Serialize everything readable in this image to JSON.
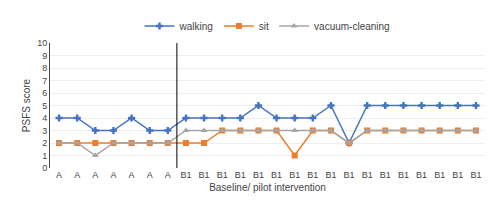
{
  "chart_data": {
    "type": "line",
    "categories": [
      "A",
      "A",
      "A",
      "A",
      "A",
      "A",
      "A",
      "B1",
      "B1",
      "B1",
      "B1",
      "B1",
      "B1",
      "B1",
      "B1",
      "B1",
      "B1",
      "B1",
      "B1",
      "B1",
      "B1",
      "B1",
      "B1",
      "B1"
    ],
    "series": [
      {
        "name": "walking",
        "color": "#4472C4",
        "marker": "plus",
        "values": [
          4,
          4,
          3,
          3,
          4,
          3,
          3,
          4,
          4,
          4,
          4,
          5,
          4,
          4,
          4,
          5,
          2,
          5,
          5,
          5,
          5,
          5,
          5,
          5
        ]
      },
      {
        "name": "sit",
        "color": "#ED7D31",
        "marker": "square",
        "values": [
          2,
          2,
          2,
          2,
          2,
          2,
          2,
          2,
          2,
          3,
          3,
          3,
          3,
          1,
          3,
          3,
          2,
          3,
          3,
          3,
          3,
          3,
          3,
          3
        ]
      },
      {
        "name": "vacuum-cleaning",
        "color": "#A5A5A5",
        "marker": "triangle",
        "values": [
          2,
          2,
          1,
          2,
          2,
          2,
          2,
          3,
          3,
          3,
          3,
          3,
          3,
          3,
          3,
          3,
          2,
          3,
          3,
          3,
          3,
          3,
          3,
          3
        ]
      }
    ],
    "vline_x": 6.5,
    "xlabel": "Baseline/ pilot intervention",
    "ylabel": "PSFS score",
    "ylim": [
      0,
      10
    ],
    "yticks": [
      0,
      1,
      2,
      3,
      4,
      5,
      6,
      7,
      8,
      9,
      10
    ],
    "grid": true,
    "legend": "top"
  }
}
